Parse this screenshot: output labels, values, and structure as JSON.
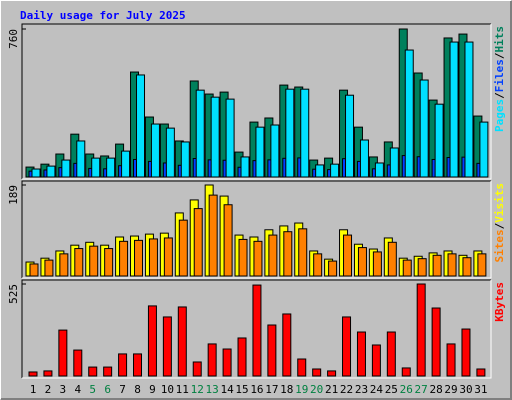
{
  "chart_data": [
    {
      "type": "bar",
      "title": "Daily usage for July 2025",
      "ylim": [
        0,
        760
      ],
      "yticks": [
        760
      ],
      "legend_separator": "/",
      "series": [
        {
          "name": "Hits",
          "color": "#00805c",
          "values": [
            51,
            66,
            118,
            220,
            118,
            108,
            169,
            539,
            308,
            272,
            185,
            493,
            426,
            436,
            128,
            282,
            303,
            472,
            462,
            87,
            97,
            446,
            256,
            103,
            180,
            760,
            534,
            395,
            714,
            734,
            313
          ]
        },
        {
          "name": "Files",
          "color": "#0040ff",
          "values": [
            30,
            36,
            48,
            70,
            44,
            42,
            58,
            90,
            80,
            72,
            60,
            95,
            88,
            86,
            50,
            84,
            88,
            96,
            98,
            40,
            38,
            94,
            80,
            42,
            62,
            110,
            104,
            90,
            100,
            102,
            70
          ]
        },
        {
          "name": "Pages",
          "color": "#00e0ff",
          "values": [
            41,
            56,
            87,
            185,
            97,
            97,
            133,
            524,
            272,
            251,
            180,
            446,
            410,
            400,
            103,
            256,
            267,
            451,
            451,
            62,
            66,
            420,
            190,
            72,
            149,
            652,
            498,
            374,
            693,
            693,
            282
          ]
        }
      ]
    },
    {
      "type": "bar",
      "ylim": [
        0,
        189
      ],
      "yticks": [
        189
      ],
      "legend_separator": "/",
      "series": [
        {
          "name": "Visits",
          "color": "#ffff00",
          "values": [
            29,
            37,
            52,
            64,
            70,
            64,
            81,
            83,
            87,
            89,
            131,
            158,
            189,
            166,
            85,
            81,
            96,
            104,
            110,
            52,
            35,
            96,
            66,
            56,
            79,
            37,
            41,
            48,
            52,
            43,
            52
          ]
        },
        {
          "name": "Sites",
          "color": "#ff8000",
          "values": [
            25,
            33,
            46,
            57,
            62,
            57,
            72,
            74,
            77,
            79,
            116,
            140,
            168,
            148,
            76,
            72,
            85,
            92,
            98,
            46,
            31,
            85,
            59,
            50,
            70,
            33,
            36,
            43,
            46,
            38,
            46
          ]
        }
      ]
    },
    {
      "type": "bar",
      "ylim": [
        0,
        525
      ],
      "yticks": [
        525
      ],
      "categories": [
        1,
        2,
        3,
        4,
        5,
        6,
        7,
        8,
        9,
        10,
        11,
        12,
        13,
        14,
        15,
        16,
        17,
        18,
        19,
        20,
        21,
        22,
        23,
        24,
        25,
        26,
        27,
        28,
        29,
        30,
        31
      ],
      "highlight_categories": [
        5,
        6,
        12,
        13,
        19,
        20,
        26,
        27
      ],
      "highlight_color": "#008040",
      "label_color": "#000000",
      "series": [
        {
          "name": "KBytes",
          "color": "#ff0000",
          "values": [
            23,
            29,
            262,
            148,
            51,
            51,
            126,
            126,
            400,
            337,
            394,
            80,
            183,
            154,
            217,
            519,
            291,
            354,
            97,
            40,
            29,
            337,
            251,
            177,
            251,
            46,
            525,
            388,
            183,
            268,
            40
          ]
        }
      ]
    }
  ]
}
